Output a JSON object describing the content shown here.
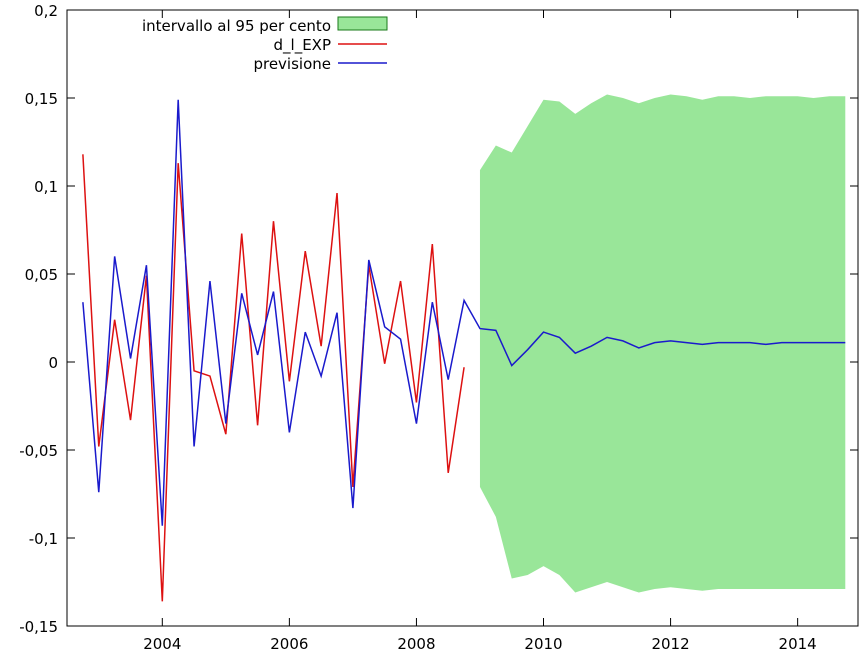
{
  "chart_data": {
    "type": "line",
    "title": "",
    "xlabel": "",
    "ylabel": "",
    "xlim": [
      2002.5,
      2014.95
    ],
    "ylim": [
      -0.15,
      0.2
    ],
    "grid": false,
    "legend_position": "top-left",
    "y_ticks": [
      {
        "value": 0.2,
        "label": "0,2"
      },
      {
        "value": 0.15,
        "label": "0,15"
      },
      {
        "value": 0.1,
        "label": "0,1"
      },
      {
        "value": 0.05,
        "label": "0,05"
      },
      {
        "value": 0,
        "label": "0"
      },
      {
        "value": -0.05,
        "label": "-0,05"
      },
      {
        "value": -0.1,
        "label": "-0,1"
      },
      {
        "value": -0.15,
        "label": "-0,15"
      }
    ],
    "x_ticks": [
      {
        "value": 2004,
        "label": "2004"
      },
      {
        "value": 2006,
        "label": "2006"
      },
      {
        "value": 2008,
        "label": "2008"
      },
      {
        "value": 2010,
        "label": "2010"
      },
      {
        "value": 2012,
        "label": "2012"
      },
      {
        "value": 2014,
        "label": "2014"
      }
    ],
    "band": {
      "name": "intervallo al 95 per cento",
      "color": "#99e699",
      "x": [
        2009.0,
        2009.25,
        2009.5,
        2009.75,
        2010.0,
        2010.25,
        2010.5,
        2010.75,
        2011.0,
        2011.25,
        2011.5,
        2011.75,
        2012.0,
        2012.25,
        2012.5,
        2012.75,
        2013.0,
        2013.25,
        2013.5,
        2013.75,
        2014.0,
        2014.25,
        2014.5,
        2014.75
      ],
      "upper": [
        0.109,
        0.123,
        0.119,
        0.134,
        0.149,
        0.148,
        0.141,
        0.147,
        0.152,
        0.15,
        0.147,
        0.15,
        0.152,
        0.151,
        0.149,
        0.151,
        0.151,
        0.15,
        0.151,
        0.151,
        0.151,
        0.15,
        0.151,
        0.151
      ],
      "lower": [
        -0.071,
        -0.088,
        -0.123,
        -0.121,
        -0.116,
        -0.121,
        -0.131,
        -0.128,
        -0.125,
        -0.128,
        -0.131,
        -0.129,
        -0.128,
        -0.129,
        -0.13,
        -0.129,
        -0.129,
        -0.129,
        -0.129,
        -0.129,
        -0.129,
        -0.129,
        -0.129,
        -0.129
      ]
    },
    "series": [
      {
        "name": "d_l_EXP",
        "color": "#dd1111",
        "x": [
          2002.75,
          2003.0,
          2003.25,
          2003.5,
          2003.75,
          2004.0,
          2004.25,
          2004.5,
          2004.75,
          2005.0,
          2005.25,
          2005.5,
          2005.75,
          2006.0,
          2006.25,
          2006.5,
          2006.75,
          2007.0,
          2007.25,
          2007.5,
          2007.75,
          2008.0,
          2008.25,
          2008.5,
          2008.75
        ],
        "values": [
          0.118,
          -0.048,
          0.024,
          -0.033,
          0.049,
          -0.136,
          0.113,
          -0.005,
          -0.008,
          -0.041,
          0.073,
          -0.036,
          0.08,
          -0.011,
          0.063,
          0.009,
          0.096,
          -0.071,
          0.055,
          -0.001,
          0.046,
          -0.023,
          0.067,
          -0.063,
          -0.003
        ]
      },
      {
        "name": "previsione",
        "color": "#1a1acc",
        "x": [
          2002.75,
          2003.0,
          2003.25,
          2003.5,
          2003.75,
          2004.0,
          2004.25,
          2004.5,
          2004.75,
          2005.0,
          2005.25,
          2005.5,
          2005.75,
          2006.0,
          2006.25,
          2006.5,
          2006.75,
          2007.0,
          2007.25,
          2007.5,
          2007.75,
          2008.0,
          2008.25,
          2008.5,
          2008.75,
          2009.0,
          2009.25,
          2009.5,
          2009.75,
          2010.0,
          2010.25,
          2010.5,
          2010.75,
          2011.0,
          2011.25,
          2011.5,
          2011.75,
          2012.0,
          2012.25,
          2012.5,
          2012.75,
          2013.0,
          2013.25,
          2013.5,
          2013.75,
          2014.0,
          2014.25,
          2014.5,
          2014.75
        ],
        "values": [
          0.034,
          -0.074,
          0.06,
          0.002,
          0.055,
          -0.093,
          0.149,
          -0.048,
          0.046,
          -0.035,
          0.039,
          0.004,
          0.04,
          -0.04,
          0.017,
          -0.008,
          0.028,
          -0.083,
          0.058,
          0.02,
          0.013,
          -0.035,
          0.034,
          -0.01,
          0.035,
          0.019,
          0.018,
          -0.002,
          0.007,
          0.017,
          0.014,
          0.005,
          0.009,
          0.014,
          0.012,
          0.008,
          0.011,
          0.012,
          0.011,
          0.01,
          0.011,
          0.011,
          0.011,
          0.01,
          0.011,
          0.011,
          0.011,
          0.011,
          0.011
        ]
      }
    ]
  }
}
